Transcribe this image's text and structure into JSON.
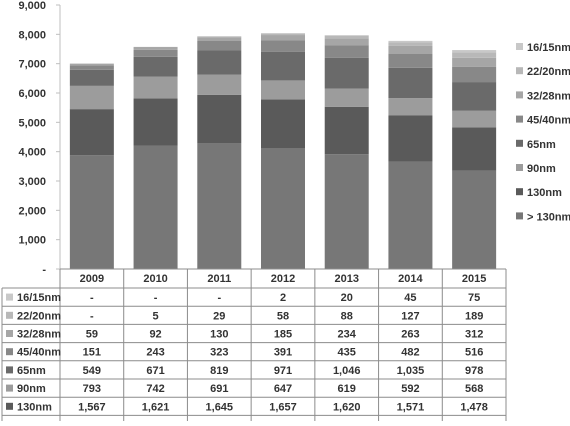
{
  "chart_data": {
    "type": "bar",
    "stacked": true,
    "categories": [
      "2009",
      "2010",
      "2011",
      "2012",
      "2013",
      "2014",
      "2015"
    ],
    "ylim": [
      0,
      9000
    ],
    "yticks": [
      0,
      1000,
      2000,
      3000,
      4000,
      5000,
      6000,
      7000,
      8000,
      9000
    ],
    "ytick_labels": [
      "-",
      "1,000",
      "2,000",
      "3,000",
      "4,000",
      "5,000",
      "6,000",
      "7,000",
      "8,000",
      "9,000"
    ],
    "grid": false,
    "legend_position": "right",
    "series": [
      {
        "name": "> 130nm",
        "color": "#777777",
        "values": [
          3883,
          4198,
          4295,
          4125,
          3911,
          3662,
          3348
        ],
        "labels": [
          "3,883",
          "4,198",
          "4,295",
          "4,125",
          "3,911",
          "3,662",
          "3,348"
        ]
      },
      {
        "name": "130nm",
        "color": "#5a5a5a",
        "values": [
          1567,
          1621,
          1645,
          1657,
          1620,
          1571,
          1478
        ],
        "labels": [
          "1,567",
          "1,621",
          "1,645",
          "1,657",
          "1,620",
          "1,571",
          "1,478"
        ]
      },
      {
        "name": "90nm",
        "color": "#9c9c9c",
        "values": [
          793,
          742,
          691,
          647,
          619,
          592,
          568
        ],
        "labels": [
          "793",
          "742",
          "691",
          "647",
          "619",
          "592",
          "568"
        ]
      },
      {
        "name": "65nm",
        "color": "#6a6a6a",
        "values": [
          549,
          671,
          819,
          971,
          1046,
          1035,
          978
        ],
        "labels": [
          "549",
          "671",
          "819",
          "971",
          "1,046",
          "1,035",
          "978"
        ]
      },
      {
        "name": "45/40nm",
        "color": "#888888",
        "values": [
          151,
          243,
          323,
          391,
          435,
          482,
          516
        ],
        "labels": [
          "151",
          "243",
          "323",
          "391",
          "435",
          "482",
          "516"
        ]
      },
      {
        "name": "32/28nm",
        "color": "#a6a6a6",
        "values": [
          59,
          92,
          130,
          185,
          234,
          263,
          312
        ],
        "labels": [
          "59",
          "92",
          "130",
          "185",
          "234",
          "263",
          "312"
        ]
      },
      {
        "name": "22/20nm",
        "color": "#b8b8b8",
        "values": [
          0,
          5,
          29,
          58,
          88,
          127,
          189
        ],
        "labels": [
          "-",
          "5",
          "29",
          "58",
          "88",
          "127",
          "189"
        ]
      },
      {
        "name": "16/15nm",
        "color": "#c8c8c8",
        "values": [
          0,
          0,
          0,
          2,
          20,
          45,
          75
        ],
        "labels": [
          "-",
          "-",
          "-",
          "2",
          "20",
          "45",
          "75"
        ]
      }
    ],
    "legend_order": [
      "16/15nm",
      "22/20nm",
      "32/28nm",
      "45/40nm",
      "65nm",
      "90nm",
      "130nm",
      "> 130nm"
    ],
    "table_row_order": [
      "16/15nm",
      "22/20nm",
      "32/28nm",
      "45/40nm",
      "65nm",
      "90nm",
      "130nm",
      "> 130nm"
    ]
  }
}
